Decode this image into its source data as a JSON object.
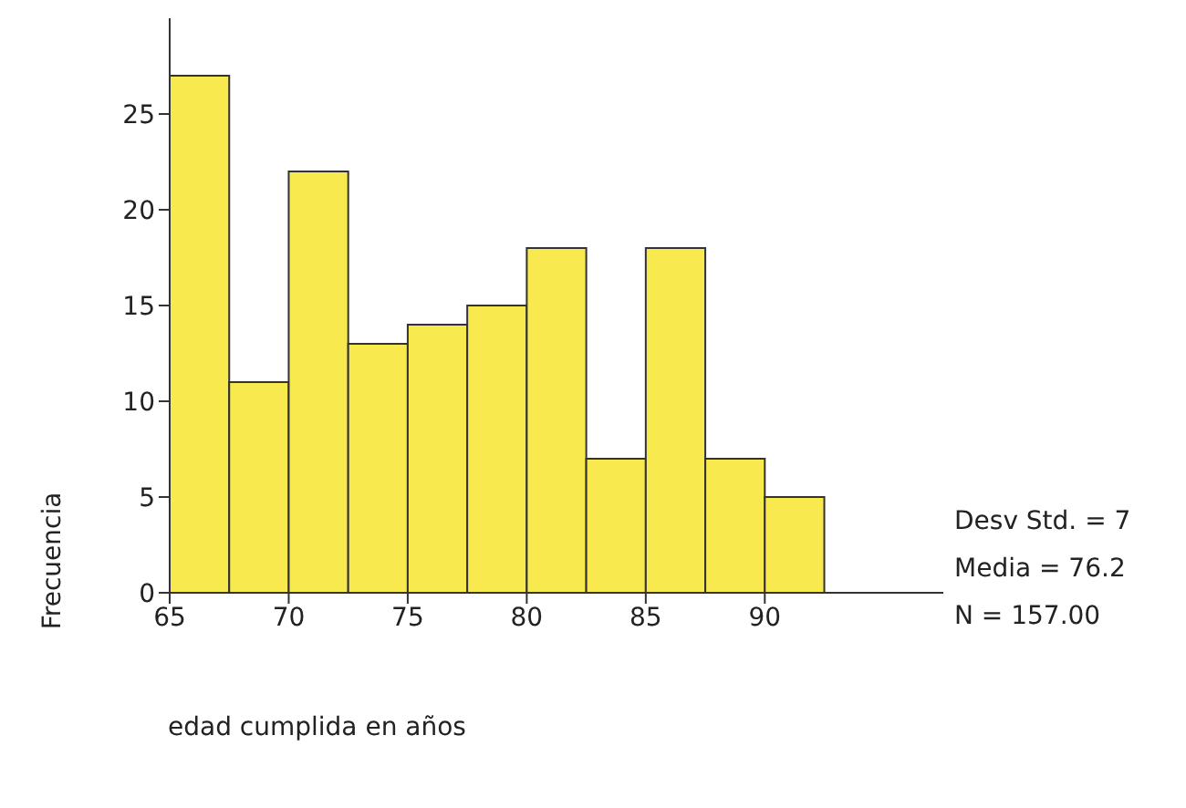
{
  "chart_data": {
    "type": "histogram",
    "bins": [
      65,
      67.5,
      70,
      72.5,
      75,
      77.5,
      80,
      82.5,
      85,
      87.5,
      90,
      92.5
    ],
    "values": [
      27,
      11,
      22,
      13,
      14,
      15,
      18,
      7,
      18,
      7,
      5
    ],
    "color": "#f8e94f",
    "xlim": [
      65,
      97.5
    ],
    "xticks": [
      65,
      70,
      75,
      80,
      85,
      90
    ],
    "ylim": [
      0,
      30
    ],
    "yticks": [
      0,
      5,
      10,
      15,
      20,
      25
    ],
    "xlabel": "edad cumplida en años",
    "ylabel": "Frecuencia",
    "annotations": [
      "Desv Std. = 7",
      "Media = 76.2",
      "N = 157.00"
    ],
    "grid": false,
    "legend": false
  }
}
